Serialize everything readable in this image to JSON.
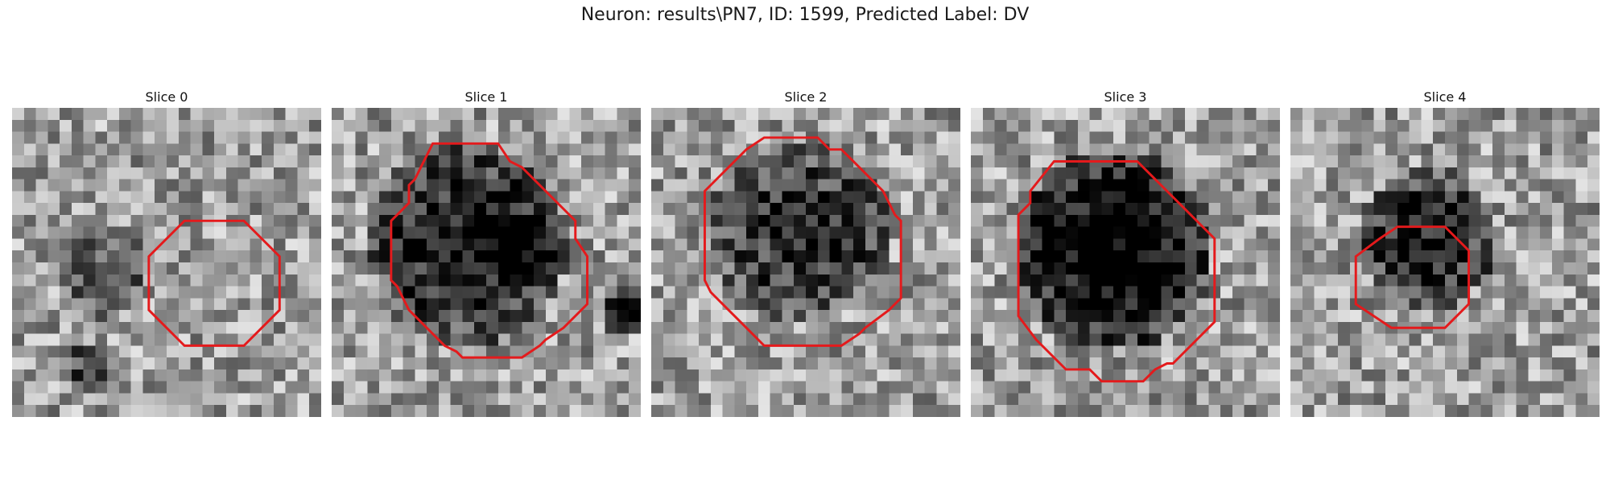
{
  "figure": {
    "title": "Neuron: results\\PN7, ID: 1599, Predicted Label: DV"
  },
  "panels": [
    {
      "title": "Slice 0",
      "contour_color": "#e41a1c",
      "contour_points": [
        [
          14.5,
          9.5
        ],
        [
          19.5,
          9.5
        ],
        [
          22.5,
          12.5
        ],
        [
          22.5,
          17
        ],
        [
          19.5,
          20
        ],
        [
          14.5,
          20
        ],
        [
          11.5,
          17
        ],
        [
          11.5,
          12.5
        ]
      ]
    },
    {
      "title": "Slice 1",
      "contour_points": [
        [
          8.5,
          3
        ],
        [
          14,
          3
        ],
        [
          15,
          4.5
        ],
        [
          16,
          5
        ],
        [
          20.5,
          9.5
        ],
        [
          20.5,
          11
        ],
        [
          21.5,
          12.5
        ],
        [
          21.5,
          16.5
        ],
        [
          19.5,
          18.5
        ],
        [
          18,
          19.5
        ],
        [
          17.5,
          20
        ],
        [
          16,
          21
        ],
        [
          11,
          21
        ],
        [
          10.5,
          20.5
        ],
        [
          9.5,
          20
        ],
        [
          6.5,
          17
        ],
        [
          5.5,
          15
        ],
        [
          5,
          14.5
        ],
        [
          5,
          9.5
        ],
        [
          5.5,
          9
        ],
        [
          6,
          8.5
        ],
        [
          6.5,
          8
        ],
        [
          6.5,
          6.5
        ],
        [
          7,
          6
        ],
        [
          7.5,
          5
        ]
      ]
    },
    {
      "title": "Slice 2",
      "contour_points": [
        [
          9.5,
          2.5
        ],
        [
          14,
          2.5
        ],
        [
          15,
          3.5
        ],
        [
          16,
          3.5
        ],
        [
          17,
          4.5
        ],
        [
          19.5,
          7
        ],
        [
          20.5,
          9
        ],
        [
          21,
          9.5
        ],
        [
          21,
          16
        ],
        [
          20,
          17
        ],
        [
          18,
          18.5
        ],
        [
          17.5,
          19
        ],
        [
          16,
          20
        ],
        [
          9.5,
          20
        ],
        [
          8,
          18.5
        ],
        [
          6,
          16.5
        ],
        [
          5,
          15.5
        ],
        [
          4.5,
          14.5
        ],
        [
          4.5,
          7
        ],
        [
          5,
          6.5
        ],
        [
          7,
          4.5
        ],
        [
          8,
          3.5
        ]
      ]
    },
    {
      "title": "Slice 3",
      "contour_points": [
        [
          7,
          4.5
        ],
        [
          14,
          4.5
        ],
        [
          20.5,
          11
        ],
        [
          20.5,
          18
        ],
        [
          17,
          21.5
        ],
        [
          16.5,
          21.5
        ],
        [
          15.5,
          22
        ],
        [
          14.5,
          23
        ],
        [
          11,
          23
        ],
        [
          10.5,
          22.5
        ],
        [
          10,
          22
        ],
        [
          8,
          22
        ],
        [
          5.5,
          19.5
        ],
        [
          4,
          17.5
        ],
        [
          4,
          9
        ],
        [
          4.5,
          8.5
        ],
        [
          5,
          8
        ],
        [
          5,
          7
        ]
      ]
    },
    {
      "title": "Slice 4",
      "contour_points": [
        [
          9,
          10
        ],
        [
          13,
          10
        ],
        [
          15,
          12
        ],
        [
          15,
          16.5
        ],
        [
          13,
          18.5
        ],
        [
          8.5,
          18.5
        ],
        [
          5.5,
          16.5
        ],
        [
          5.5,
          12.5
        ],
        [
          7.5,
          11
        ]
      ]
    }
  ],
  "grid_size": 26
}
